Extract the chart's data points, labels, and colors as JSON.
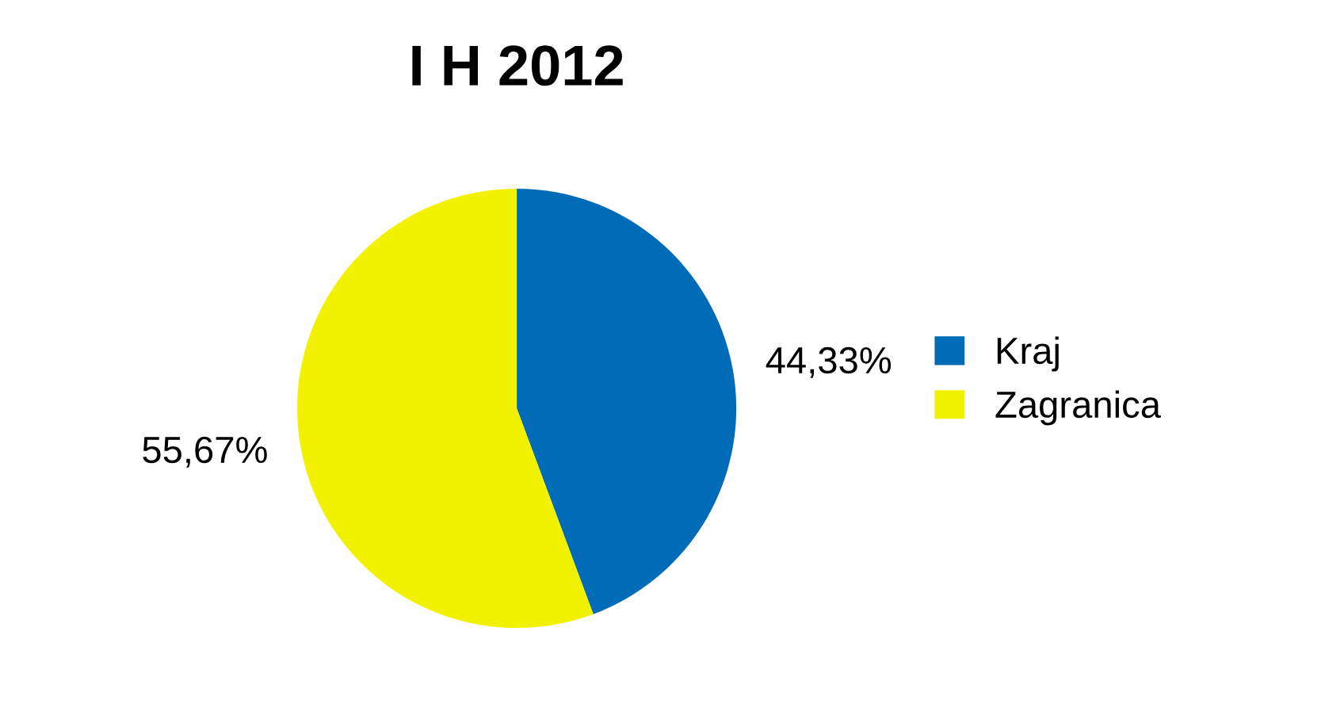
{
  "chart_data": {
    "type": "pie",
    "title": "I H 2012",
    "categories": [
      "Kraj",
      "Zagranica"
    ],
    "values": [
      44.33,
      55.67
    ],
    "colors": [
      "#006bb6",
      "#f2f200"
    ],
    "value_labels": [
      "44,33%",
      "55,67%"
    ],
    "legend": "right"
  }
}
